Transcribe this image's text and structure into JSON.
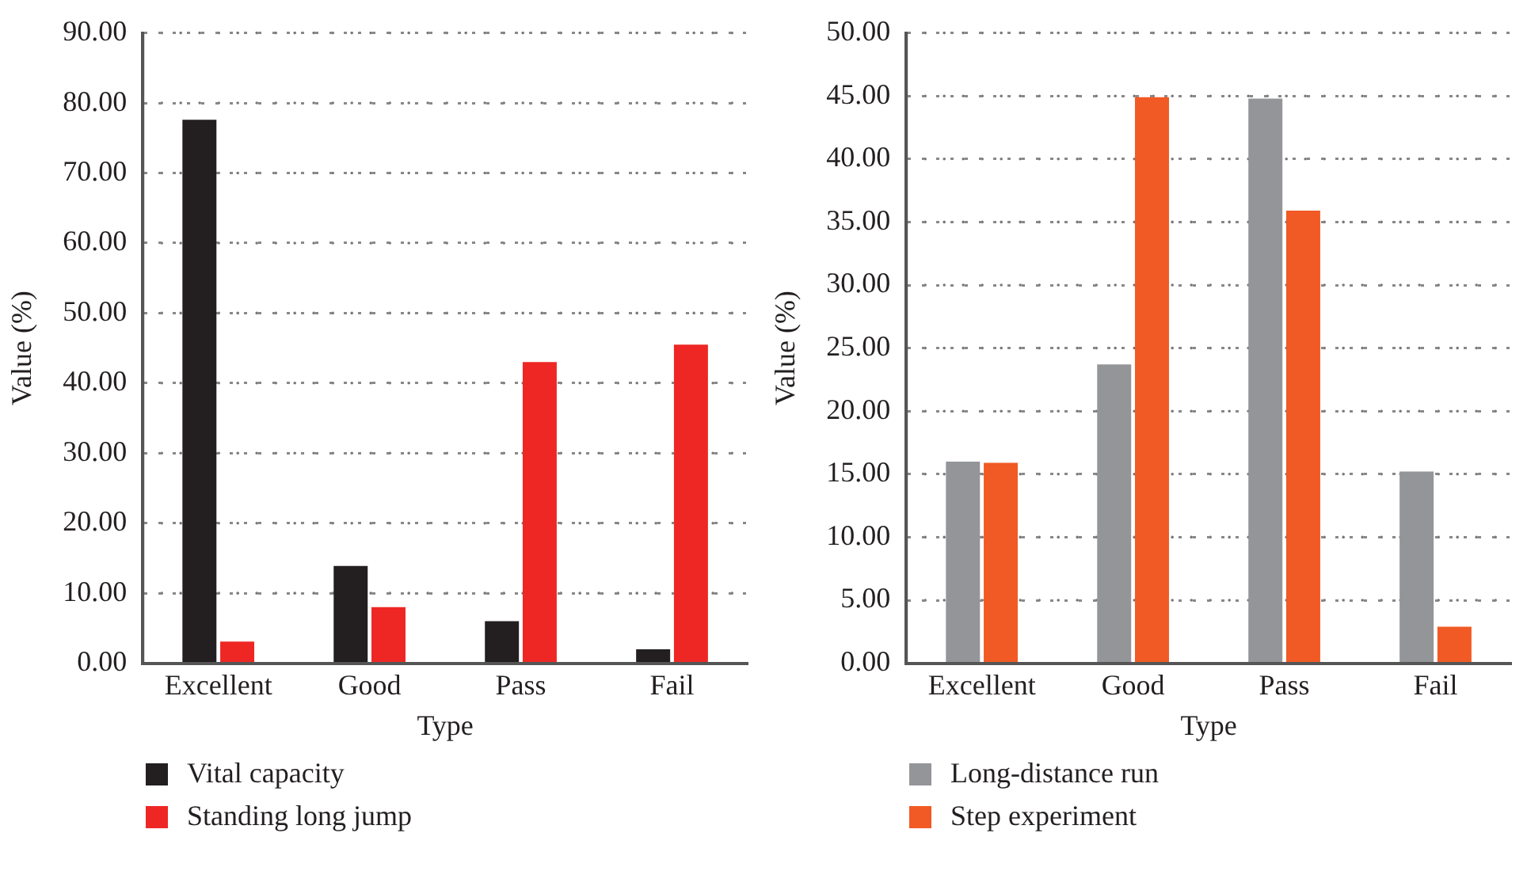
{
  "chart_data": [
    {
      "type": "bar",
      "xlabel": "Type",
      "ylabel": "Value (%)",
      "categories": [
        "Excellent",
        "Good",
        "Pass",
        "Fail"
      ],
      "series": [
        {
          "name": "Vital capacity",
          "color": "#231f20",
          "values": [
            77.6,
            13.9,
            6.0,
            2.0
          ]
        },
        {
          "name": "Standing long jump",
          "color": "#ee2724",
          "values": [
            3.1,
            8.0,
            43.0,
            45.5
          ]
        }
      ],
      "ylim": [
        0,
        90
      ],
      "yticks": [
        {
          "value": 0,
          "label": "0.00"
        },
        {
          "value": 10,
          "label": "10.00"
        },
        {
          "value": 20,
          "label": "20.00"
        },
        {
          "value": 30,
          "label": "30.00"
        },
        {
          "value": 40,
          "label": "40.00"
        },
        {
          "value": 50,
          "label": "50.00"
        },
        {
          "value": 60,
          "label": "60.00"
        },
        {
          "value": 70,
          "label": "70.00"
        },
        {
          "value": 80,
          "label": "80.00"
        },
        {
          "value": 90,
          "label": "90.00"
        }
      ],
      "grid": "y",
      "legend": "bottom"
    },
    {
      "type": "bar",
      "xlabel": "Type",
      "ylabel": "Value (%)",
      "categories": [
        "Excellent",
        "Good",
        "Pass",
        "Fail"
      ],
      "series": [
        {
          "name": "Long-distance run",
          "color": "#939598",
          "values": [
            16.0,
            23.7,
            44.8,
            15.2
          ]
        },
        {
          "name": "Step experiment",
          "color": "#f15a24",
          "values": [
            15.9,
            44.9,
            35.9,
            2.9
          ]
        }
      ],
      "ylim": [
        0,
        50
      ],
      "yticks": [
        {
          "value": 0,
          "label": "0.00"
        },
        {
          "value": 5,
          "label": "5.00"
        },
        {
          "value": 10,
          "label": "10.00"
        },
        {
          "value": 15,
          "label": "15.00"
        },
        {
          "value": 20,
          "label": "20.00"
        },
        {
          "value": 25,
          "label": "25.00"
        },
        {
          "value": 30,
          "label": "30.00"
        },
        {
          "value": 35,
          "label": "35.00"
        },
        {
          "value": 40,
          "label": "40.00"
        },
        {
          "value": 45,
          "label": "45.00"
        },
        {
          "value": 50,
          "label": "50.00"
        }
      ],
      "grid": "y",
      "legend": "bottom"
    }
  ]
}
